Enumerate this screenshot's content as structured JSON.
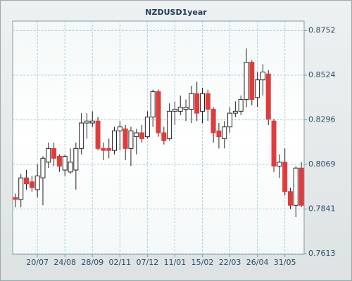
{
  "chart_data": {
    "type": "candlestick",
    "title": "NZDUSD1year",
    "categories": [
      null,
      null,
      null,
      null,
      "20/07",
      null,
      null,
      null,
      null,
      "24/08",
      null,
      null,
      null,
      null,
      "28/09",
      null,
      null,
      null,
      null,
      "02/11",
      null,
      null,
      null,
      null,
      "07/12",
      null,
      null,
      null,
      null,
      "11/01",
      null,
      null,
      null,
      null,
      "15/02",
      null,
      null,
      null,
      null,
      "22/03",
      null,
      null,
      null,
      null,
      "26/04",
      null,
      null,
      null,
      null,
      "31/05",
      null,
      null,
      null
    ],
    "open": [
      0.79,
      0.789,
      0.8,
      0.798,
      0.794,
      0.8,
      0.808,
      0.815,
      0.811,
      0.804,
      0.803,
      0.804,
      0.815,
      0.828,
      0.828,
      0.829,
      0.815,
      0.815,
      0.814,
      0.824,
      0.825,
      0.815,
      0.821,
      0.823,
      0.821,
      0.831,
      0.844,
      0.823,
      0.82,
      0.834,
      0.834,
      0.835,
      0.835,
      0.843,
      0.834,
      0.843,
      0.835,
      0.824,
      0.82,
      0.826,
      0.833,
      0.834,
      0.84,
      0.859,
      0.841,
      0.85,
      0.853,
      0.829,
      0.806,
      0.808,
      0.793,
      0.786,
      0.805
    ],
    "high": [
      0.792,
      0.802,
      0.804,
      0.801,
      0.807,
      0.811,
      0.818,
      0.818,
      0.812,
      0.812,
      0.815,
      0.818,
      0.833,
      0.833,
      0.834,
      0.831,
      0.818,
      0.82,
      0.826,
      0.829,
      0.827,
      0.826,
      0.825,
      0.827,
      0.834,
      0.845,
      0.845,
      0.826,
      0.838,
      0.839,
      0.842,
      0.84,
      0.847,
      0.849,
      0.846,
      0.845,
      0.836,
      0.828,
      0.829,
      0.836,
      0.839,
      0.842,
      0.866,
      0.86,
      0.854,
      0.858,
      0.855,
      0.83,
      0.812,
      0.815,
      0.795,
      0.806,
      0.808
    ],
    "low": [
      0.785,
      0.785,
      0.794,
      0.793,
      0.79,
      0.786,
      0.805,
      0.806,
      0.803,
      0.801,
      0.802,
      0.794,
      0.812,
      0.82,
      0.826,
      0.814,
      0.809,
      0.81,
      0.812,
      0.814,
      0.809,
      0.806,
      0.812,
      0.818,
      0.82,
      0.826,
      0.821,
      0.817,
      0.819,
      0.827,
      0.832,
      0.829,
      0.828,
      0.829,
      0.828,
      0.829,
      0.818,
      0.815,
      0.815,
      0.823,
      0.831,
      0.832,
      0.836,
      0.837,
      0.836,
      0.842,
      0.827,
      0.803,
      0.8,
      0.791,
      0.784,
      0.78,
      0.785
    ],
    "close": [
      0.789,
      0.8,
      0.797,
      0.795,
      0.801,
      0.81,
      0.815,
      0.81,
      0.806,
      0.811,
      0.808,
      0.815,
      0.828,
      0.829,
      0.829,
      0.815,
      0.814,
      0.814,
      0.824,
      0.826,
      0.815,
      0.824,
      0.823,
      0.82,
      0.831,
      0.844,
      0.823,
      0.819,
      0.834,
      0.835,
      0.836,
      0.836,
      0.843,
      0.833,
      0.843,
      0.835,
      0.823,
      0.821,
      0.826,
      0.833,
      0.834,
      0.84,
      0.859,
      0.84,
      0.85,
      0.854,
      0.83,
      0.806,
      0.808,
      0.793,
      0.786,
      0.805,
      0.786
    ],
    "up_color": "#ffffff",
    "down_color": "#e03c3c",
    "ylim": [
      0.761,
      0.88
    ],
    "yticks": [
      0.7613,
      0.7841,
      0.8069,
      0.8296,
      0.8524,
      0.8752
    ],
    "grid": true
  }
}
